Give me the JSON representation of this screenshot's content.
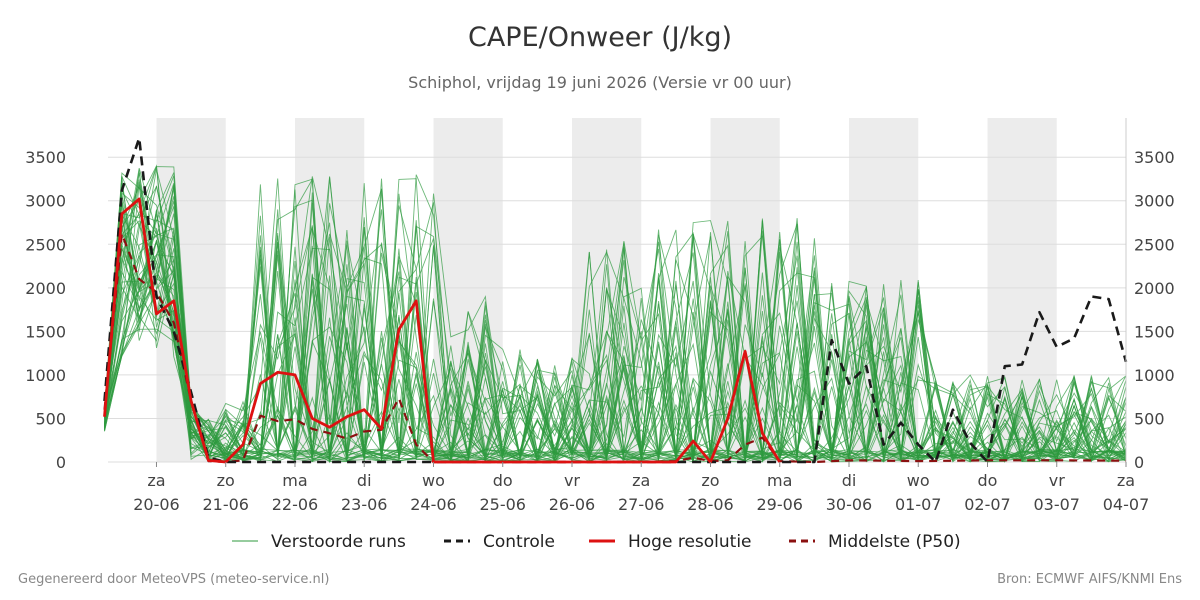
{
  "header": {
    "title": "CAPE/Onweer (J/kg)",
    "subtitle": "Schiphol, vrijdag 19 juni 2026 (Versie vr 00 uur)"
  },
  "footer": {
    "left": "Gegenereerd door MeteoVPS (meteo-service.nl)",
    "right": "Bron: ECMWF AIFS/KNMI Ens"
  },
  "colors": {
    "perturbed": "#2e9a3e",
    "control": "#1a1a1a",
    "high_res": "#dd1111",
    "median": "#8b1010",
    "weekend_band": "#ececec",
    "grid": "#dddddd"
  },
  "chart_data": {
    "type": "line",
    "title": "CAPE/Onweer (J/kg)",
    "ylim": [
      0,
      3950
    ],
    "yticks": [
      0,
      500,
      1000,
      1500,
      2000,
      2500,
      3000,
      3500
    ],
    "xlim": [
      -0.7,
      14
    ],
    "x_unit": "days after 20-06-2026 00:00",
    "grid": "horizontal",
    "legend_position": "bottom",
    "x_ticks": [
      {
        "x": 0,
        "day": "za",
        "date": "20-06"
      },
      {
        "x": 1,
        "day": "zo",
        "date": "21-06"
      },
      {
        "x": 2,
        "day": "ma",
        "date": "22-06"
      },
      {
        "x": 3,
        "day": "di",
        "date": "23-06"
      },
      {
        "x": 4,
        "day": "wo",
        "date": "24-06"
      },
      {
        "x": 5,
        "day": "do",
        "date": "25-06"
      },
      {
        "x": 6,
        "day": "vr",
        "date": "26-06"
      },
      {
        "x": 7,
        "day": "za",
        "date": "27-06"
      },
      {
        "x": 8,
        "day": "zo",
        "date": "28-06"
      },
      {
        "x": 9,
        "day": "ma",
        "date": "29-06"
      },
      {
        "x": 10,
        "day": "di",
        "date": "30-06"
      },
      {
        "x": 11,
        "day": "wo",
        "date": "01-07"
      },
      {
        "x": 12,
        "day": "do",
        "date": "02-07"
      },
      {
        "x": 13,
        "day": "vr",
        "date": "03-07"
      },
      {
        "x": 14,
        "day": "za",
        "date": "04-07"
      }
    ],
    "night_bands": [
      [
        0,
        1
      ],
      [
        2,
        3
      ],
      [
        4,
        5
      ],
      [
        6,
        7
      ],
      [
        8,
        9
      ],
      [
        10,
        11
      ],
      [
        12,
        13
      ]
    ],
    "legend": [
      {
        "label": "Verstoorde runs",
        "key": "perturbed",
        "style": "thin"
      },
      {
        "label": "Controle",
        "key": "control",
        "style": "dashed"
      },
      {
        "label": "Hoge resolutie",
        "key": "high_res",
        "style": "solid"
      },
      {
        "label": "Middelste (P50)",
        "key": "median",
        "style": "dashed"
      }
    ],
    "series": [
      {
        "name": "Controle",
        "key": "control",
        "x": [
          -0.75,
          -0.5,
          -0.25,
          0,
          0.25,
          0.5,
          0.75,
          1,
          1.25,
          1.5,
          1.75,
          2,
          2.25,
          2.5,
          2.75,
          3,
          3.25,
          3.5,
          3.75,
          4,
          4.5,
          5,
          6,
          7,
          8,
          8.5,
          9,
          9.25,
          9.5,
          9.75,
          10,
          10.25,
          10.5,
          10.75,
          11,
          11.25,
          11.5,
          11.75,
          12,
          12.25,
          12.5,
          12.75,
          13,
          13.25,
          13.5,
          13.75,
          14
        ],
        "y": [
          700,
          3120,
          3720,
          1900,
          1500,
          800,
          50,
          0,
          0,
          0,
          0,
          0,
          0,
          0,
          0,
          0,
          0,
          0,
          0,
          0,
          0,
          0,
          0,
          0,
          0,
          0,
          0,
          0,
          0,
          1400,
          900,
          1100,
          200,
          450,
          200,
          0,
          600,
          220,
          0,
          1100,
          1120,
          1720,
          1320,
          1420,
          1900,
          1870,
          1150
        ]
      },
      {
        "name": "Hoge resolutie",
        "key": "high_res",
        "x": [
          -0.75,
          -0.5,
          -0.25,
          0,
          0.25,
          0.5,
          0.75,
          1,
          1.25,
          1.5,
          1.75,
          2,
          2.25,
          2.5,
          2.75,
          3,
          3.25,
          3.5,
          3.75,
          4,
          4.5,
          5,
          6,
          7,
          7.5,
          7.75,
          8,
          8.25,
          8.5,
          8.75,
          9
        ],
        "y": [
          520,
          2850,
          3020,
          1700,
          1850,
          700,
          20,
          0,
          200,
          900,
          1030,
          1000,
          500,
          400,
          520,
          600,
          380,
          1520,
          1850,
          0,
          0,
          0,
          0,
          0,
          0,
          240,
          0,
          500,
          1270,
          330,
          0
        ]
      },
      {
        "name": "Middelste (P50)",
        "key": "median",
        "x": [
          -0.75,
          -0.5,
          -0.25,
          0,
          0.25,
          0.5,
          0.75,
          1,
          1.25,
          1.5,
          1.75,
          2,
          2.25,
          2.5,
          2.75,
          3,
          3.25,
          3.5,
          3.75,
          4,
          4.5,
          5,
          6,
          7,
          7.5,
          7.75,
          8,
          8.25,
          8.5,
          8.75,
          9,
          9.5,
          10,
          11,
          12,
          13,
          14
        ],
        "y": [
          600,
          2620,
          2100,
          1950,
          1600,
          700,
          10,
          0,
          20,
          530,
          470,
          490,
          380,
          330,
          270,
          350,
          370,
          730,
          200,
          0,
          0,
          0,
          0,
          0,
          10,
          50,
          10,
          20,
          200,
          280,
          10,
          0,
          20,
          10,
          20,
          20,
          15
        ]
      }
    ]
  }
}
